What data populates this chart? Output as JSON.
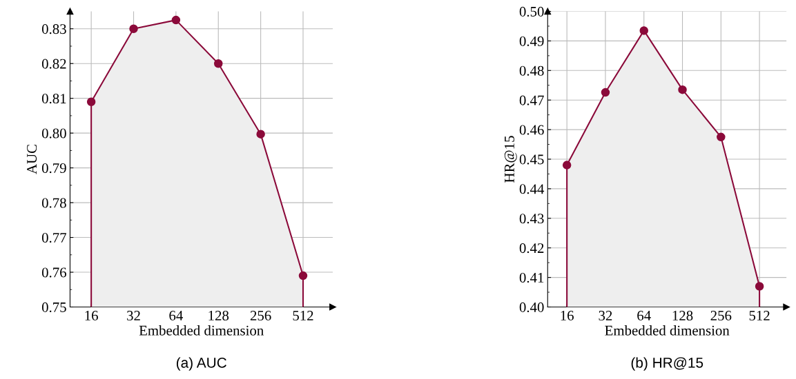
{
  "chart_data": [
    {
      "type": "area",
      "title": "(a) AUC",
      "xlabel": "Embedded dimension",
      "ylabel": "AUC",
      "categories": [
        "16",
        "32",
        "64",
        "128",
        "256",
        "512"
      ],
      "series": [
        {
          "color": "#8b0a3a",
          "values": [
            0.809,
            0.83,
            0.8325,
            0.82,
            0.7997,
            0.759
          ]
        }
      ],
      "ylim": [
        0.75,
        0.835
      ],
      "yticks": [
        0.75,
        0.76,
        0.77,
        0.78,
        0.79,
        {
          "value": 0.8,
          "label": "0.80"
        },
        0.81,
        0.82,
        0.83
      ],
      "grid": true,
      "marker": "circle",
      "line_style": "solid"
    },
    {
      "type": "area",
      "title": "(b) HR@15",
      "xlabel": "Embedded dimension",
      "ylabel": "HR@15",
      "categories": [
        "16",
        "32",
        "64",
        "128",
        "256",
        "512"
      ],
      "series": [
        {
          "color": "#8b0a3a",
          "values": [
            0.448,
            0.4726,
            0.4935,
            0.4735,
            0.4575,
            0.407
          ]
        }
      ],
      "ylim": [
        0.4,
        0.5
      ],
      "yticks": [
        {
          "value": 0.4,
          "label": "0.40"
        },
        0.41,
        0.42,
        0.43,
        0.44,
        0.45,
        0.46,
        0.47,
        0.48,
        0.49,
        {
          "value": 0.5,
          "label": "0.50"
        }
      ],
      "grid": true,
      "marker": "circle",
      "line_style": "solid"
    }
  ]
}
